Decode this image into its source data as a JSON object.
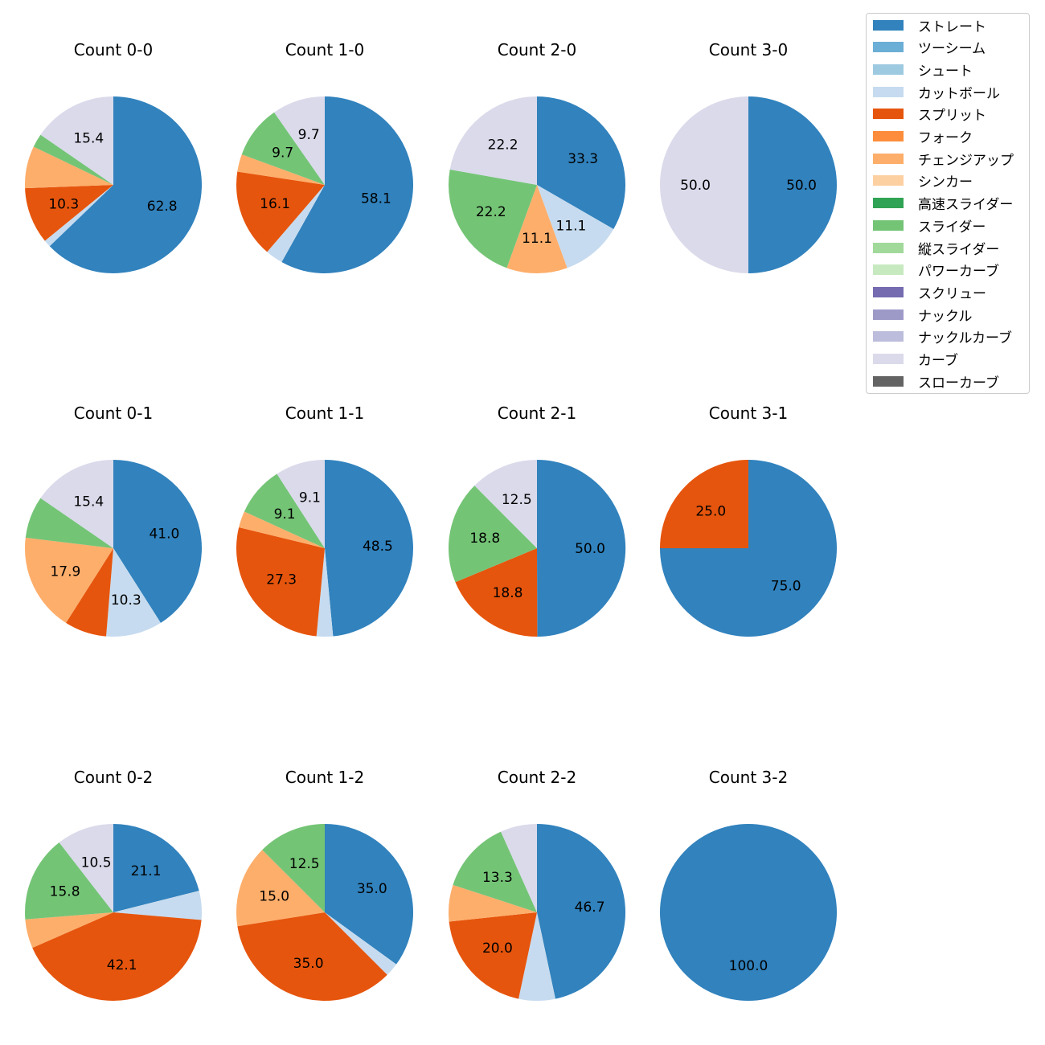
{
  "chart_data": {
    "type": "pie",
    "legend": {
      "placement": "top-right",
      "entries": [
        {
          "name": "ストレート",
          "color": "#3182bd"
        },
        {
          "name": "ツーシーム",
          "color": "#6baed6"
        },
        {
          "name": "シュート",
          "color": "#9ecae1"
        },
        {
          "name": "カットボール",
          "color": "#c6dbef"
        },
        {
          "name": "スプリット",
          "color": "#e6550d"
        },
        {
          "name": "フォーク",
          "color": "#fd8d3c"
        },
        {
          "name": "チェンジアップ",
          "color": "#fdae6b"
        },
        {
          "name": "シンカー",
          "color": "#fdd0a2"
        },
        {
          "name": "高速スライダー",
          "color": "#31a354"
        },
        {
          "name": "スライダー",
          "color": "#74c476"
        },
        {
          "name": "縦スライダー",
          "color": "#a1d99b"
        },
        {
          "name": "パワーカーブ",
          "color": "#c7e9c0"
        },
        {
          "name": "スクリュー",
          "color": "#756bb1"
        },
        {
          "name": "ナックル",
          "color": "#9e9ac8"
        },
        {
          "name": "ナックルカーブ",
          "color": "#bcbddc"
        },
        {
          "name": "カーブ",
          "color": "#dadaeb"
        },
        {
          "name": "スローカーブ",
          "color": "#636363"
        }
      ]
    },
    "pies": [
      {
        "title": "Count 0-0",
        "slices": [
          {
            "name": "ストレート",
            "value": 62.8,
            "label": "62.8"
          },
          {
            "name": "カットボール",
            "value": 1.3,
            "label": ""
          },
          {
            "name": "スプリット",
            "value": 10.3,
            "label": "10.3"
          },
          {
            "name": "チェンジアップ",
            "value": 7.7,
            "label": ""
          },
          {
            "name": "スライダー",
            "value": 2.5,
            "label": ""
          },
          {
            "name": "カーブ",
            "value": 15.4,
            "label": "15.4"
          }
        ]
      },
      {
        "title": "Count 1-0",
        "slices": [
          {
            "name": "ストレート",
            "value": 58.1,
            "label": "58.1"
          },
          {
            "name": "カットボール",
            "value": 3.2,
            "label": ""
          },
          {
            "name": "スプリット",
            "value": 16.1,
            "label": "16.1"
          },
          {
            "name": "チェンジアップ",
            "value": 3.2,
            "label": ""
          },
          {
            "name": "スライダー",
            "value": 9.7,
            "label": "9.7"
          },
          {
            "name": "カーブ",
            "value": 9.7,
            "label": "9.7"
          }
        ]
      },
      {
        "title": "Count 2-0",
        "slices": [
          {
            "name": "ストレート",
            "value": 33.3,
            "label": "33.3"
          },
          {
            "name": "カットボール",
            "value": 11.1,
            "label": "11.1"
          },
          {
            "name": "チェンジアップ",
            "value": 11.1,
            "label": "11.1"
          },
          {
            "name": "スライダー",
            "value": 22.2,
            "label": "22.2"
          },
          {
            "name": "カーブ",
            "value": 22.2,
            "label": "22.2"
          }
        ]
      },
      {
        "title": "Count 3-0",
        "slices": [
          {
            "name": "ストレート",
            "value": 50.0,
            "label": "50.0"
          },
          {
            "name": "カーブ",
            "value": 50.0,
            "label": "50.0"
          }
        ]
      },
      {
        "title": "Count 0-1",
        "slices": [
          {
            "name": "ストレート",
            "value": 41.0,
            "label": "41.0"
          },
          {
            "name": "カットボール",
            "value": 10.3,
            "label": "10.3"
          },
          {
            "name": "スプリット",
            "value": 7.7,
            "label": ""
          },
          {
            "name": "チェンジアップ",
            "value": 17.9,
            "label": "17.9"
          },
          {
            "name": "スライダー",
            "value": 7.7,
            "label": ""
          },
          {
            "name": "カーブ",
            "value": 15.4,
            "label": "15.4"
          }
        ]
      },
      {
        "title": "Count 1-1",
        "slices": [
          {
            "name": "ストレート",
            "value": 48.5,
            "label": "48.5"
          },
          {
            "name": "カットボール",
            "value": 3.0,
            "label": ""
          },
          {
            "name": "スプリット",
            "value": 27.3,
            "label": "27.3"
          },
          {
            "name": "チェンジアップ",
            "value": 3.0,
            "label": ""
          },
          {
            "name": "スライダー",
            "value": 9.1,
            "label": "9.1"
          },
          {
            "name": "カーブ",
            "value": 9.1,
            "label": "9.1"
          }
        ]
      },
      {
        "title": "Count 2-1",
        "slices": [
          {
            "name": "ストレート",
            "value": 50.0,
            "label": "50.0"
          },
          {
            "name": "スプリット",
            "value": 18.8,
            "label": "18.8"
          },
          {
            "name": "スライダー",
            "value": 18.8,
            "label": "18.8"
          },
          {
            "name": "カーブ",
            "value": 12.5,
            "label": "12.5"
          }
        ]
      },
      {
        "title": "Count 3-1",
        "slices": [
          {
            "name": "ストレート",
            "value": 75.0,
            "label": "75.0"
          },
          {
            "name": "スプリット",
            "value": 25.0,
            "label": "25.0"
          }
        ]
      },
      {
        "title": "Count 0-2",
        "slices": [
          {
            "name": "ストレート",
            "value": 21.1,
            "label": "21.1"
          },
          {
            "name": "カットボール",
            "value": 5.3,
            "label": ""
          },
          {
            "name": "スプリット",
            "value": 42.1,
            "label": "42.1"
          },
          {
            "name": "チェンジアップ",
            "value": 5.3,
            "label": ""
          },
          {
            "name": "スライダー",
            "value": 15.8,
            "label": "15.8"
          },
          {
            "name": "カーブ",
            "value": 10.5,
            "label": "10.5"
          }
        ]
      },
      {
        "title": "Count 1-2",
        "slices": [
          {
            "name": "ストレート",
            "value": 35.0,
            "label": "35.0"
          },
          {
            "name": "カットボール",
            "value": 2.5,
            "label": ""
          },
          {
            "name": "スプリット",
            "value": 35.0,
            "label": "35.0"
          },
          {
            "name": "チェンジアップ",
            "value": 15.0,
            "label": "15.0"
          },
          {
            "name": "スライダー",
            "value": 12.5,
            "label": "12.5"
          }
        ]
      },
      {
        "title": "Count 2-2",
        "slices": [
          {
            "name": "ストレート",
            "value": 46.7,
            "label": "46.7"
          },
          {
            "name": "カットボール",
            "value": 6.7,
            "label": ""
          },
          {
            "name": "スプリット",
            "value": 20.0,
            "label": "20.0"
          },
          {
            "name": "チェンジアップ",
            "value": 6.7,
            "label": ""
          },
          {
            "name": "スライダー",
            "value": 13.3,
            "label": "13.3"
          },
          {
            "name": "カーブ",
            "value": 6.7,
            "label": ""
          }
        ]
      },
      {
        "title": "Count 3-2",
        "slices": [
          {
            "name": "ストレート",
            "value": 100.0,
            "label": "100.0"
          }
        ]
      }
    ]
  }
}
